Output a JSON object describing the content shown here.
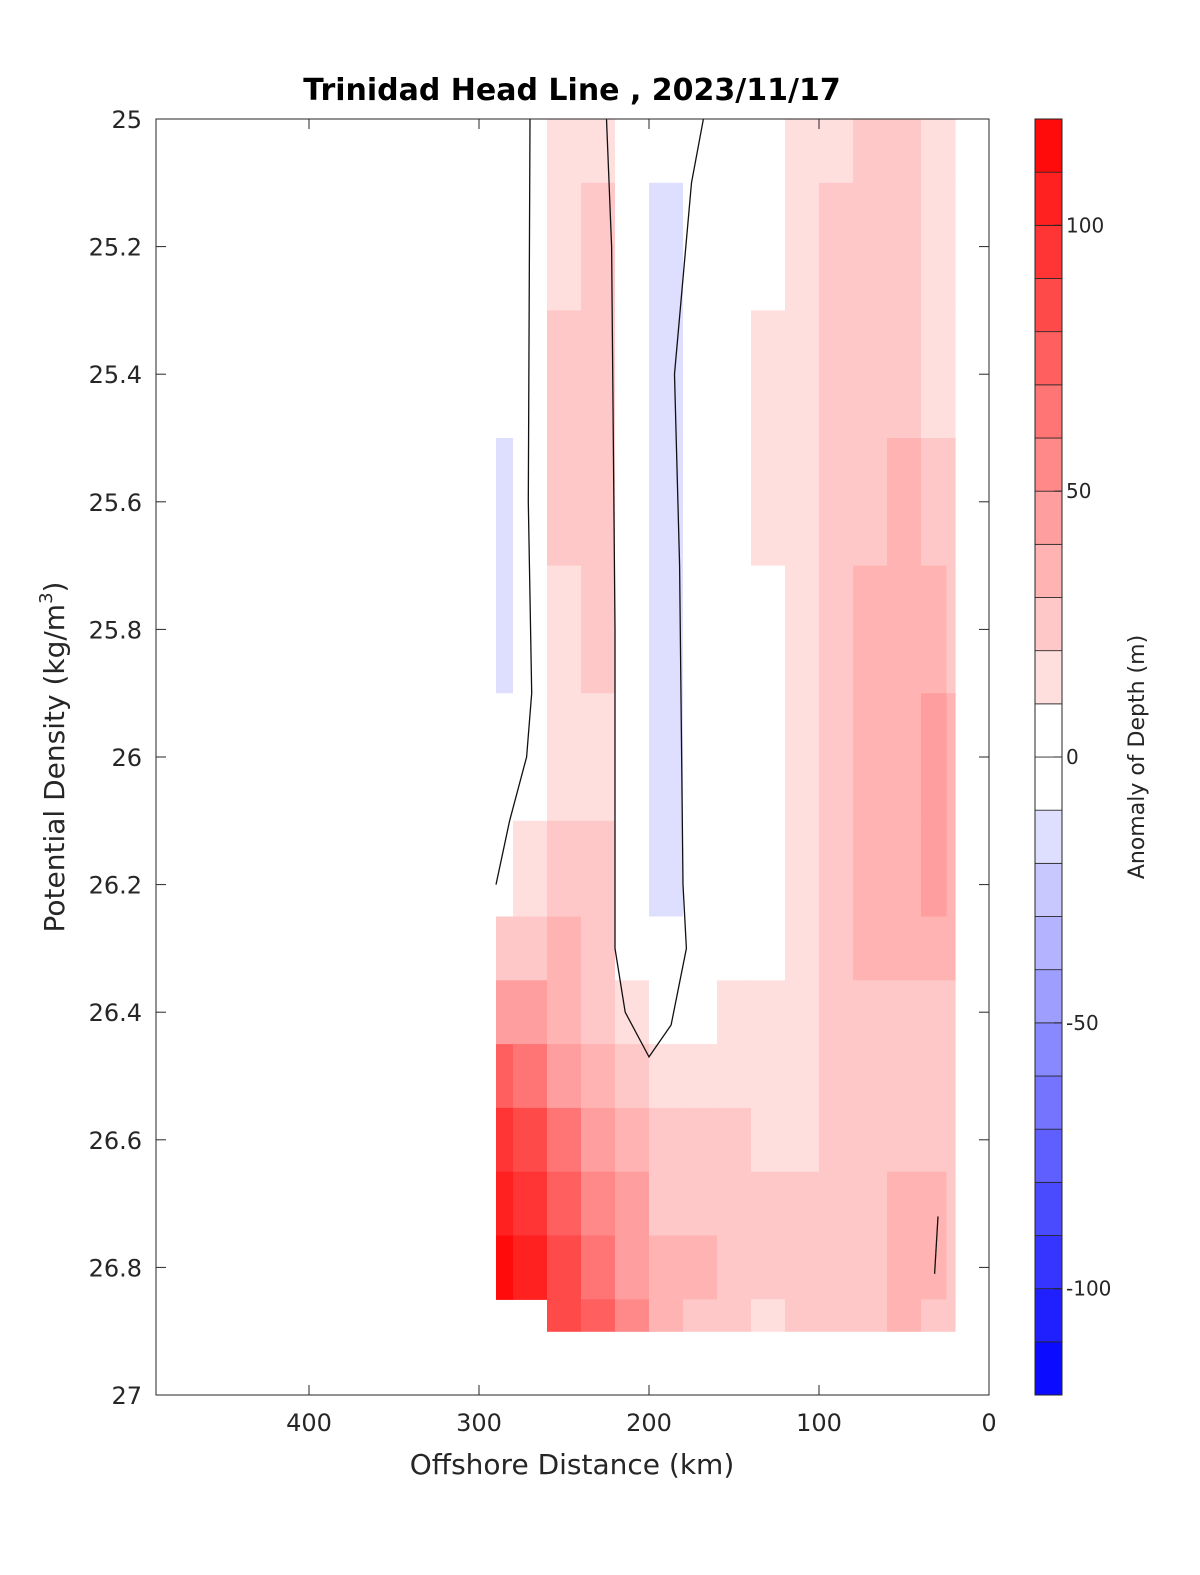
{
  "chart_data": {
    "type": "heatmap",
    "title": "Trinidad Head Line , 2023/11/17",
    "xlabel": "Offshore Distance (km)",
    "ylabel_main": "Potential Density (kg/m",
    "ylabel_sup": "3",
    "ylabel_end": ")",
    "xlim": [
      490,
      0
    ],
    "ylim": [
      25,
      27
    ],
    "y_reversed": true,
    "x_reversed": true,
    "xticks": [
      400,
      300,
      200,
      100,
      0
    ],
    "yticks": [
      25,
      25.2,
      25.4,
      25.6,
      25.8,
      26,
      26.2,
      26.4,
      26.6,
      26.8,
      27
    ],
    "ytick_labels": [
      "25",
      "25.2",
      "25.4",
      "25.6",
      "25.8",
      "26",
      "26.2",
      "26.4",
      "26.6",
      "26.8",
      "27"
    ],
    "colorbar": {
      "label": "Anomaly of Depth (m)",
      "range": [
        -120,
        120
      ],
      "levels": [
        -120,
        -110,
        -100,
        -90,
        -80,
        -70,
        -60,
        -50,
        -40,
        -30,
        -20,
        -10,
        0,
        10,
        20,
        30,
        40,
        50,
        60,
        70,
        80,
        90,
        100,
        110,
        120
      ],
      "ticks": [
        100,
        50,
        0,
        -50,
        -100
      ],
      "tick_labels": [
        "100",
        "50",
        "0",
        "-50",
        "-100"
      ]
    },
    "stations_km": [
      290,
      270,
      250,
      230,
      210,
      190,
      170,
      150,
      130,
      110,
      90,
      70,
      50,
      30,
      20
    ],
    "density_levels": [
      25.0,
      25.2,
      25.4,
      25.6,
      25.8,
      26.0,
      26.2,
      26.3,
      26.4,
      26.5,
      26.6,
      26.7,
      26.8,
      26.9
    ],
    "values": [
      [
        -5,
        3,
        15,
        14,
        3,
        -6,
        2,
        5,
        6,
        11,
        18,
        22,
        20,
        16,
        14
      ],
      [
        -7,
        3,
        19,
        25,
        5,
        -12,
        -5,
        6,
        7,
        13,
        20,
        24,
        22,
        18,
        16
      ],
      [
        -10,
        4,
        20,
        28,
        6,
        -14,
        -8,
        7,
        16,
        14,
        21,
        26,
        25,
        19,
        17
      ],
      [
        -12,
        4,
        20,
        28,
        6,
        -14,
        -9,
        7,
        15,
        15,
        22,
        28,
        32,
        27,
        22
      ],
      [
        -11,
        5,
        18,
        22,
        5,
        -13,
        -7,
        6,
        7,
        16,
        23,
        30,
        34,
        33,
        28
      ],
      [
        -10,
        6,
        17,
        18,
        5,
        -15,
        -8,
        5,
        8,
        17,
        24,
        31,
        35,
        40,
        36
      ],
      [
        8,
        14,
        22,
        20,
        6,
        -13,
        -7,
        5,
        9,
        16,
        25,
        32,
        33,
        40,
        38
      ],
      [
        22,
        26,
        30,
        22,
        8,
        -6,
        -3,
        6,
        9,
        15,
        23,
        31,
        30,
        33,
        32
      ],
      [
        48,
        45,
        36,
        28,
        18,
        6,
        4,
        10,
        12,
        14,
        20,
        29,
        28,
        26,
        26
      ],
      [
        72,
        62,
        48,
        35,
        25,
        14,
        12,
        16,
        14,
        16,
        20,
        27,
        28,
        26,
        25
      ],
      [
        90,
        80,
        62,
        45,
        32,
        22,
        20,
        22,
        18,
        18,
        22,
        27,
        28,
        27,
        26
      ],
      [
        108,
        97,
        74,
        55,
        40,
        28,
        24,
        26,
        25,
        22,
        22,
        26,
        30,
        30,
        28
      ],
      [
        112,
        103,
        82,
        65,
        48,
        34,
        32,
        28,
        26,
        24,
        24,
        28,
        34,
        30,
        28
      ],
      [
        null,
        null,
        86,
        72,
        55,
        38,
        28,
        22,
        16,
        20,
        24,
        25,
        30,
        26,
        22
      ]
    ],
    "zero_contours": [
      [
        [
          270,
          25
        ],
        [
          271,
          25.6
        ],
        [
          269,
          25.9
        ],
        [
          272,
          26.0
        ],
        [
          282,
          26.1
        ],
        [
          290,
          26.2
        ]
      ],
      [
        [
          225,
          25
        ],
        [
          222,
          25.2
        ],
        [
          220,
          25.8
        ],
        [
          220,
          26.3
        ],
        [
          214,
          26.4
        ],
        [
          200,
          26.47
        ],
        [
          187,
          26.42
        ],
        [
          178,
          26.3
        ],
        [
          180,
          26.2
        ],
        [
          182,
          25.7
        ],
        [
          185,
          25.4
        ],
        [
          175,
          25.1
        ],
        [
          168,
          25
        ]
      ],
      [
        [
          30,
          26.72
        ],
        [
          32,
          26.81
        ]
      ]
    ]
  }
}
